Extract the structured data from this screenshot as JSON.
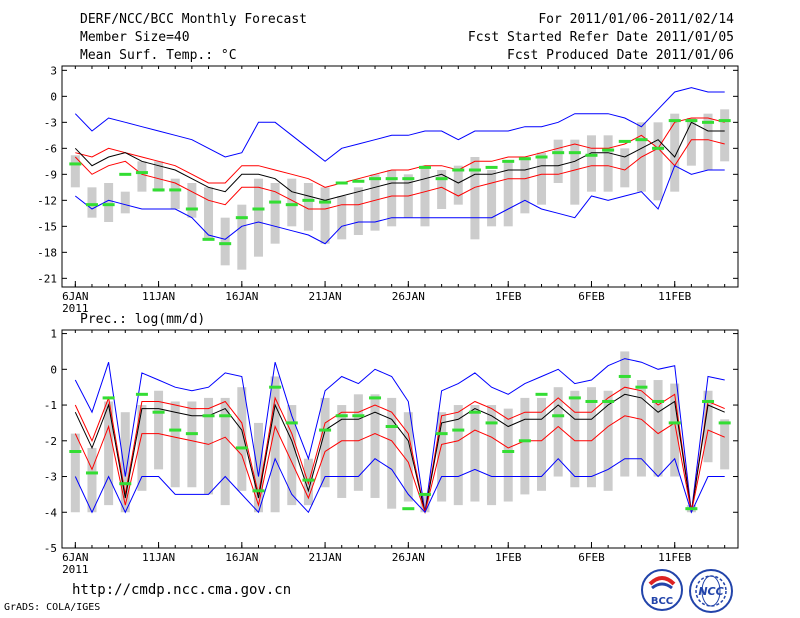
{
  "header": {
    "title": "DERF/NCC/BCC Monthly Forecast",
    "member": "Member Size=40",
    "variable": "Mean Surf. Temp.: °C",
    "period": "For 2011/01/06-2011/02/14",
    "started": "Fcst Started Refer Date 2011/01/05",
    "produced": "Fcst Produced Date 2011/01/06"
  },
  "footer": {
    "url": "http://cmdp.ncc.cma.gov.cn",
    "credit": "GrADS: COLA/IGES",
    "logo_bcc": "BCC",
    "logo_ncc": "NCC"
  },
  "colors": {
    "blue": "#0000ff",
    "red": "#ff0000",
    "black": "#000000",
    "green": "#33dd33",
    "box": "#cccccc"
  },
  "chart_data": [
    {
      "type": "box",
      "title": "Mean Surf. Temp.: °C",
      "ylim": [
        -22,
        3.5
      ],
      "yticks": [
        3,
        0,
        -3,
        -6,
        -9,
        -12,
        -15,
        -18,
        -21
      ],
      "xlim": [
        -0.8,
        39.8
      ],
      "xticks": [
        {
          "label": "6JAN",
          "x": 0
        },
        {
          "label": "11JAN",
          "x": 5
        },
        {
          "label": "16JAN",
          "x": 10
        },
        {
          "label": "21JAN",
          "x": 15
        },
        {
          "label": "26JAN",
          "x": 20
        },
        {
          "label": "1FEB",
          "x": 26
        },
        {
          "label": "6FEB",
          "x": 31
        },
        {
          "label": "11FEB",
          "x": 36
        }
      ],
      "year_label": "2011",
      "max": [
        -2,
        -4,
        -2.5,
        -3,
        -3.5,
        -4,
        -4.5,
        -5,
        -6,
        -7,
        -6.5,
        -3,
        -3,
        -4.5,
        -6,
        -7.5,
        -6,
        -5.5,
        -5,
        -4.5,
        -4.5,
        -4,
        -4,
        -5,
        -4,
        -4,
        -4,
        -3.5,
        -3.5,
        -3,
        -2,
        -2,
        -2,
        -2.5,
        -3.5,
        -1.5,
        0.5,
        1,
        0.5,
        0.5
      ],
      "p75": [
        -6.5,
        -7,
        -6,
        -6.5,
        -7,
        -7.5,
        -8,
        -9,
        -10,
        -10,
        -8,
        -8,
        -8.5,
        -9,
        -9.5,
        -10.5,
        -10,
        -9.5,
        -9,
        -8.5,
        -8.5,
        -8,
        -8,
        -8.5,
        -7.5,
        -7.5,
        -7,
        -7,
        -6.5,
        -6,
        -5.5,
        -6,
        -6,
        -5.5,
        -4.5,
        -6,
        -3,
        -2.5,
        -2.5,
        -3
      ],
      "mean": [
        -6,
        -8,
        -7,
        -6.5,
        -7.5,
        -8,
        -8.5,
        -9.5,
        -10.5,
        -11,
        -9,
        -9,
        -9.5,
        -11,
        -11.5,
        -12,
        -11.5,
        -11,
        -10.5,
        -10,
        -10,
        -9.5,
        -9,
        -10,
        -9,
        -9,
        -8.5,
        -8.5,
        -8,
        -8,
        -7.5,
        -6.5,
        -6.5,
        -7,
        -6,
        -5,
        -7,
        -3,
        -4,
        -4
      ],
      "p25": [
        -7,
        -9,
        -8,
        -7.5,
        -9,
        -9.5,
        -10,
        -11,
        -12,
        -12.5,
        -10.5,
        -10.5,
        -11,
        -12,
        -13,
        -13,
        -12.5,
        -12.5,
        -12,
        -11.5,
        -11.5,
        -11,
        -10.5,
        -11.5,
        -10.5,
        -10,
        -9.5,
        -9.5,
        -9,
        -9,
        -8.5,
        -8,
        -8,
        -8.5,
        -7,
        -6,
        -8,
        -5,
        -5,
        -5.5
      ],
      "min": [
        -11.5,
        -13,
        -12,
        -12.5,
        -13,
        -13,
        -13,
        -14,
        -16,
        -16.5,
        -15,
        -14.5,
        -15,
        -15.5,
        -16,
        -17,
        -15,
        -14.5,
        -14.5,
        -14,
        -14,
        -14,
        -14,
        -14,
        -14,
        -14,
        -13,
        -12,
        -13,
        -13.5,
        -14,
        -11.5,
        -12,
        -11.5,
        -11,
        -13,
        -8,
        -9,
        -8.5,
        -8.5
      ],
      "box_hi": [
        -6.8,
        -10.5,
        -10,
        -11,
        -7.5,
        -7.5,
        -9.5,
        -10,
        -10.5,
        -14,
        -12.5,
        -9.5,
        -10,
        -9.5,
        -10,
        -10.5,
        -11.5,
        -10.5,
        -9,
        -8.5,
        -9,
        -8,
        -8.5,
        -8,
        -7,
        -8.5,
        -7.5,
        -7,
        -6.5,
        -5,
        -5,
        -4.5,
        -4.5,
        -6,
        -3,
        -3,
        -2,
        -2.5,
        -2,
        -1.5
      ],
      "box_lo": [
        -10.5,
        -14,
        -14.5,
        -13.5,
        -11,
        -11,
        -13,
        -14,
        -16.5,
        -19.5,
        -20,
        -18.5,
        -17,
        -15,
        -15.5,
        -17,
        -16.5,
        -16,
        -15.5,
        -15,
        -14,
        -15,
        -13,
        -12.5,
        -16.5,
        -15,
        -15,
        -13.5,
        -12.5,
        -10,
        -12.5,
        -11,
        -11,
        -10.5,
        -11,
        -12,
        -11,
        -8,
        -8.5,
        -7.5
      ],
      "ensmean": [
        -7.8,
        -12.5,
        -12.5,
        -9,
        -8.8,
        -10.8,
        -10.8,
        -13,
        -16.5,
        -17,
        -14,
        -13,
        -12.2,
        -12.5,
        -12,
        -12.2,
        -10,
        -9.8,
        -9.5,
        -9.5,
        -9.5,
        -8.2,
        -9.5,
        -8.5,
        -8.5,
        -8.2,
        -7.5,
        -7.2,
        -7,
        -6.5,
        -6.5,
        -6.8,
        -6.2,
        -5.2,
        -5,
        -6,
        -2.8,
        -2.8,
        -3,
        -2.8
      ]
    },
    {
      "type": "box",
      "title": "Prec.: log(mm/d)",
      "ylim": [
        -5,
        1.1
      ],
      "yticks": [
        1,
        0,
        -1,
        -2,
        -3,
        -4,
        -5
      ],
      "xlim": [
        -0.8,
        39.8
      ],
      "xticks": [
        {
          "label": "6JAN",
          "x": 0
        },
        {
          "label": "11JAN",
          "x": 5
        },
        {
          "label": "16JAN",
          "x": 10
        },
        {
          "label": "21JAN",
          "x": 15
        },
        {
          "label": "26JAN",
          "x": 20
        },
        {
          "label": "1FEB",
          "x": 26
        },
        {
          "label": "6FEB",
          "x": 31
        },
        {
          "label": "11FEB",
          "x": 36
        }
      ],
      "year_label": "2011",
      "max": [
        -0.3,
        -1.2,
        0.2,
        -3,
        -0.1,
        -0.3,
        -0.5,
        -0.6,
        -0.5,
        -0.1,
        -0.2,
        -3,
        0.2,
        -1.3,
        -2.5,
        -0.6,
        -0.2,
        -0.4,
        0,
        -0.2,
        -0.9,
        -4,
        -0.6,
        -0.4,
        -0.1,
        -0.5,
        -0.7,
        -0.4,
        -0.2,
        0,
        -0.4,
        -0.3,
        0.1,
        0.3,
        0.2,
        0,
        0.1,
        -4,
        -0.2,
        -0.3
      ],
      "p75": [
        -1,
        -2,
        -0.8,
        -3.5,
        -0.9,
        -0.9,
        -1,
        -1.1,
        -1.1,
        -0.9,
        -1.5,
        -3.5,
        -0.8,
        -1.8,
        -3.2,
        -1.5,
        -1.2,
        -1.2,
        -1,
        -1.2,
        -1.8,
        -4,
        -1.3,
        -1.2,
        -0.9,
        -1.1,
        -1.4,
        -1.2,
        -1.2,
        -0.8,
        -1.2,
        -1.2,
        -0.8,
        -0.5,
        -0.6,
        -1,
        -0.7,
        -4,
        -0.9,
        -1.1
      ],
      "mean": [
        -1.2,
        -2.2,
        -1,
        -3.6,
        -1.1,
        -1.1,
        -1.2,
        -1.3,
        -1.3,
        -1.1,
        -1.7,
        -3.6,
        -1,
        -2,
        -3.4,
        -1.7,
        -1.4,
        -1.4,
        -1.2,
        -1.4,
        -2,
        -4,
        -1.5,
        -1.4,
        -1.1,
        -1.3,
        -1.6,
        -1.4,
        -1.4,
        -1,
        -1.4,
        -1.4,
        -1,
        -0.7,
        -0.8,
        -1.2,
        -0.9,
        -4,
        -1,
        -1.2
      ],
      "p25": [
        -1.8,
        -2.8,
        -1.6,
        -3.8,
        -1.8,
        -1.8,
        -1.9,
        -2,
        -2.1,
        -1.9,
        -2.4,
        -3.8,
        -1.6,
        -2.6,
        -3.6,
        -2.3,
        -2,
        -2,
        -1.8,
        -2,
        -2.6,
        -4,
        -2.1,
        -2,
        -1.7,
        -1.9,
        -2.2,
        -2,
        -2,
        -1.6,
        -2,
        -2,
        -1.6,
        -1.3,
        -1.4,
        -1.8,
        -1.5,
        -4,
        -1.7,
        -1.9
      ],
      "min": [
        -3,
        -4,
        -3,
        -4,
        -3,
        -3,
        -3.5,
        -3.5,
        -3.5,
        -3,
        -3.5,
        -4,
        -2.5,
        -3.5,
        -4,
        -3,
        -3,
        -3,
        -2.5,
        -2.8,
        -3.5,
        -4,
        -3,
        -3,
        -2.8,
        -3,
        -3,
        -3,
        -3,
        -2.5,
        -3,
        -3,
        -2.8,
        -2.5,
        -2.5,
        -3,
        -2.5,
        -4,
        -3,
        -3
      ],
      "box_hi": [
        -1.8,
        -2.2,
        -0.9,
        -1.2,
        -1,
        -0.6,
        -0.9,
        -0.9,
        -0.8,
        -0.8,
        -0.5,
        -1.5,
        -0.2,
        -1,
        -2.5,
        -0.8,
        -1,
        -0.7,
        -0.7,
        -0.8,
        -1.2,
        -3.5,
        -1.2,
        -1,
        -1,
        -1,
        -1.1,
        -0.8,
        -0.8,
        -0.5,
        -0.6,
        -0.5,
        -0.6,
        0.5,
        -0.3,
        -0.3,
        -0.4,
        -3.8,
        -0.6,
        -1.4
      ],
      "box_lo": [
        -4,
        -4,
        -3.8,
        -4,
        -3.4,
        -2.8,
        -3.3,
        -3.3,
        -3.5,
        -3.8,
        -3.4,
        -4,
        -4,
        -3.8,
        -3.8,
        -3.3,
        -3.6,
        -3.4,
        -3.6,
        -3.9,
        -3.7,
        -4,
        -3.7,
        -3.8,
        -3.7,
        -3.8,
        -3.7,
        -3.5,
        -3.4,
        -3,
        -3.3,
        -3.3,
        -3.4,
        -3,
        -3,
        -3,
        -3,
        -4,
        -2.6,
        -2.8
      ],
      "ensmean": [
        -2.3,
        -2.9,
        -0.8,
        -3.2,
        -0.7,
        -1.2,
        -1.7,
        -1.8,
        -1.3,
        -1.3,
        -2.2,
        -3.4,
        -0.5,
        -1.5,
        -3.1,
        -1.7,
        -1.3,
        -1.3,
        -0.8,
        -1.6,
        -3.9,
        -3.5,
        -1.8,
        -1.7,
        -1.2,
        -1.5,
        -2.3,
        -2,
        -0.7,
        -1.3,
        -0.8,
        -0.9,
        -0.9,
        -0.2,
        -0.5,
        -0.9,
        -1.5,
        -3.9,
        -0.9,
        -1.5
      ]
    }
  ]
}
